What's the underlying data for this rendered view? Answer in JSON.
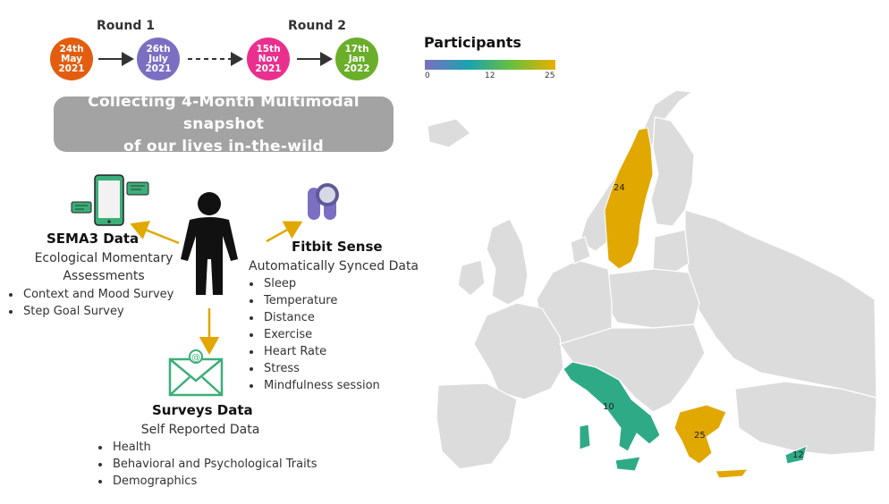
{
  "timeline": {
    "rounds": [
      {
        "label": "Round 1"
      },
      {
        "label": "Round 2"
      }
    ],
    "dates": [
      {
        "text": "24th\nMay\n2021",
        "color": "#e35d0f"
      },
      {
        "text": "26th\nJuly\n2021",
        "color": "#7b6fc2"
      },
      {
        "text": "15th\nNov\n2021",
        "color": "#e9308e"
      },
      {
        "text": "17th\nJan\n2022",
        "color": "#6aae2a"
      }
    ]
  },
  "banner": {
    "text": "Collecting 4-Month Multimodal snapshot\nof our lives in-the-wild"
  },
  "sema3": {
    "title": "SEMA3 Data",
    "subtitle": "Ecological Momentary\nAssessments",
    "items": [
      "Context and Mood Survey",
      "Step Goal Survey"
    ]
  },
  "fitbit": {
    "title": "Fitbit Sense",
    "subtitle": "Automatically Synced Data",
    "items": [
      "Sleep",
      "Temperature",
      "Distance",
      "Exercise",
      "Heart Rate",
      "Stress",
      "Mindfulness session"
    ]
  },
  "surveys": {
    "title": "Surveys Data",
    "subtitle": "Self Reported Data",
    "items": [
      "Health",
      "Behavioral and Psychological Traits",
      "Demographics"
    ]
  },
  "map": {
    "legend_title": "Participants",
    "scale": {
      "min": 0,
      "mid": 12,
      "max": 25,
      "colors": [
        "#7b6fc2",
        "#1aa3b0",
        "#6abf3b",
        "#e8b000"
      ]
    },
    "countries": [
      {
        "name": "Sweden",
        "value": 24,
        "label": "24",
        "color": "#e0a800"
      },
      {
        "name": "Italy",
        "value": 10,
        "label": "10",
        "color": "#2faa87"
      },
      {
        "name": "Greece",
        "value": 25,
        "label": "25",
        "color": "#e0a800"
      },
      {
        "name": "Cyprus",
        "value": 12,
        "label": "12",
        "color": "#2faa87"
      }
    ],
    "other_color": "#dcdcdc"
  }
}
